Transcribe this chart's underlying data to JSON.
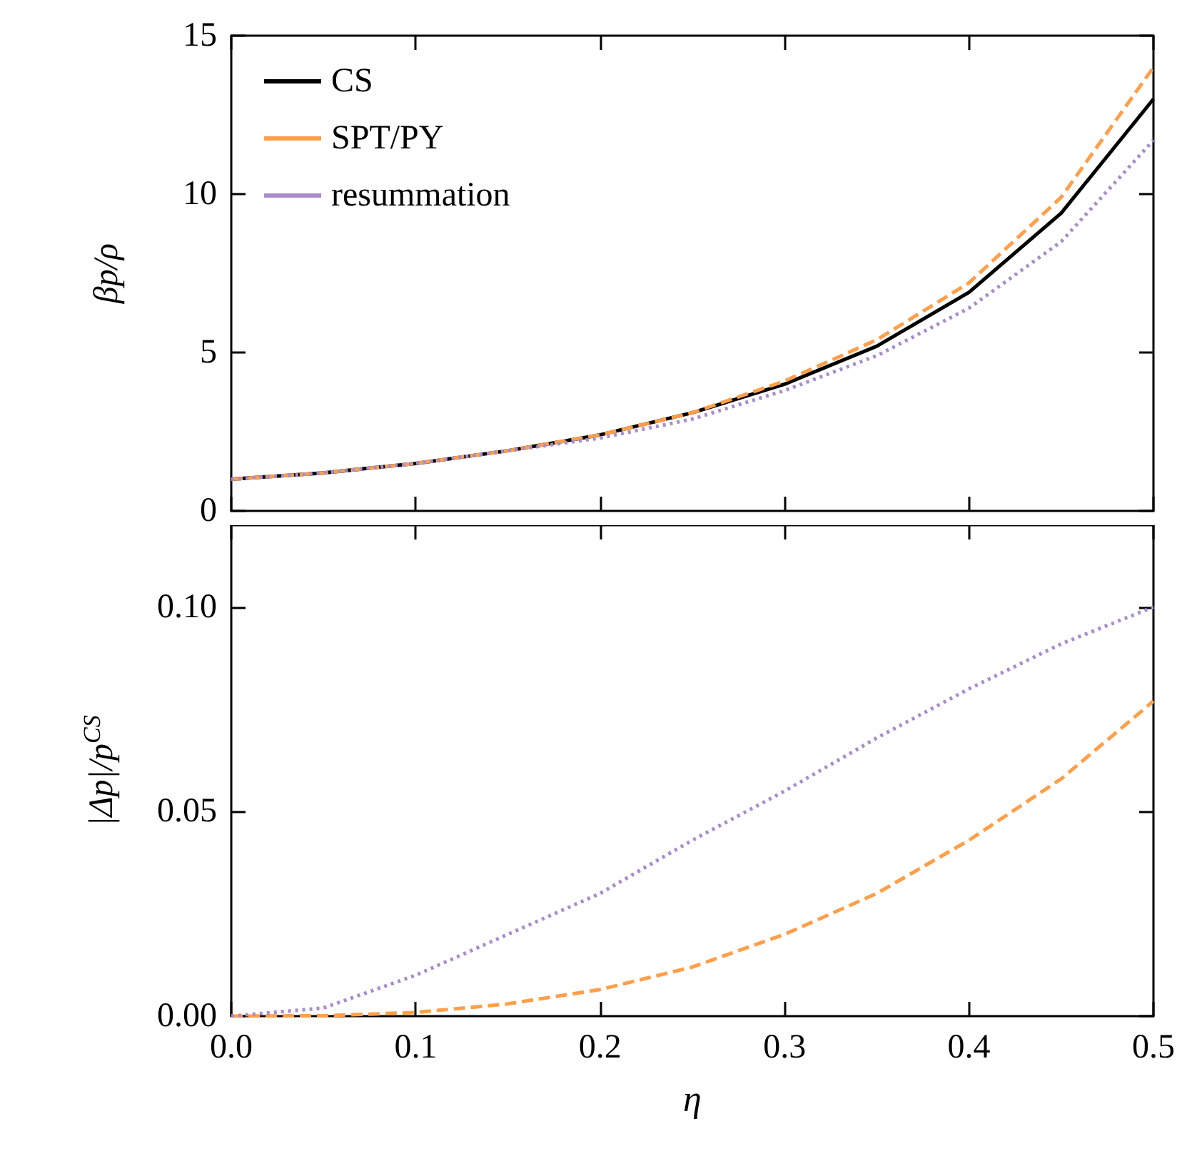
{
  "chart_data": [
    {
      "type": "line",
      "ylabel": "βp/ρ",
      "x": [
        0,
        0.05,
        0.1,
        0.15,
        0.2,
        0.25,
        0.3,
        0.35,
        0.4,
        0.45,
        0.5
      ],
      "xlim": [
        0,
        0.5
      ],
      "xticks": [
        {
          "value": 0,
          "label": null
        },
        {
          "value": 0.1,
          "label": null
        },
        {
          "value": 0.2,
          "label": null
        },
        {
          "value": 0.3,
          "label": null
        },
        {
          "value": 0.4,
          "label": null
        },
        {
          "value": 0.5,
          "label": null
        }
      ],
      "ylim": [
        0,
        15
      ],
      "yticks": [
        0,
        5,
        10,
        15
      ],
      "tick_labels": "y",
      "grid": false,
      "legend": "top left",
      "marker": "none",
      "series": [
        {
          "name": "CS",
          "color": "#000000",
          "line_style": "solid",
          "values": [
            1,
            1.2,
            1.5,
            1.9,
            2.4,
            3.1,
            4.0,
            5.2,
            6.9,
            9.4,
            13
          ]
        },
        {
          "name": "SPT/PY",
          "color": "#ff9f4a",
          "line_style": "dashed",
          "values": [
            1,
            1.2,
            1.5,
            1.9,
            2.4,
            3.1,
            4.1,
            5.4,
            7.2,
            9.9,
            14
          ]
        },
        {
          "name": "resummation",
          "color": "#a88ccc",
          "line_style": "dotted",
          "values": [
            1,
            1.2,
            1.5,
            1.9,
            2.3,
            2.9,
            3.8,
            4.9,
            6.4,
            8.5,
            11.7
          ]
        }
      ]
    },
    {
      "type": "line",
      "xlabel": "η",
      "ylabel": "|Δp|/p$^{CS}$",
      "x": [
        0,
        0.05,
        0.1,
        0.15,
        0.2,
        0.25,
        0.3,
        0.35,
        0.4,
        0.45,
        0.5
      ],
      "xlim": [
        0,
        0.5
      ],
      "xticks": [
        {
          "value": 0,
          "label": "0.0"
        },
        {
          "value": 0.1,
          "label": "0.1"
        },
        {
          "value": 0.2,
          "label": "0.2"
        },
        {
          "value": 0.3,
          "label": "0.3"
        },
        {
          "value": 0.4,
          "label": "0.4"
        },
        {
          "value": 0.5,
          "label": "0.5"
        }
      ],
      "ylim": [
        0,
        0.12
      ],
      "yticks": [
        {
          "value": 0,
          "label": "0.00"
        },
        {
          "value": 0.05,
          "label": "0.05"
        },
        {
          "value": 0.1,
          "label": "0.10"
        }
      ],
      "grid": false,
      "legend": false,
      "marker": "none",
      "series": [
        {
          "color": "#ff9f4a",
          "line_style": "dashed",
          "values": [
            0,
            0.0001,
            0.0009,
            0.003,
            0.0065,
            0.012,
            0.02,
            0.03,
            0.043,
            0.058,
            0.077
          ]
        },
        {
          "color": "#a88ccc",
          "line_style": "dotted",
          "values": [
            0,
            0.002,
            0.01,
            0.02,
            0.03,
            0.043,
            0.055,
            0.068,
            0.08,
            0.091,
            0.1
          ]
        }
      ]
    }
  ]
}
